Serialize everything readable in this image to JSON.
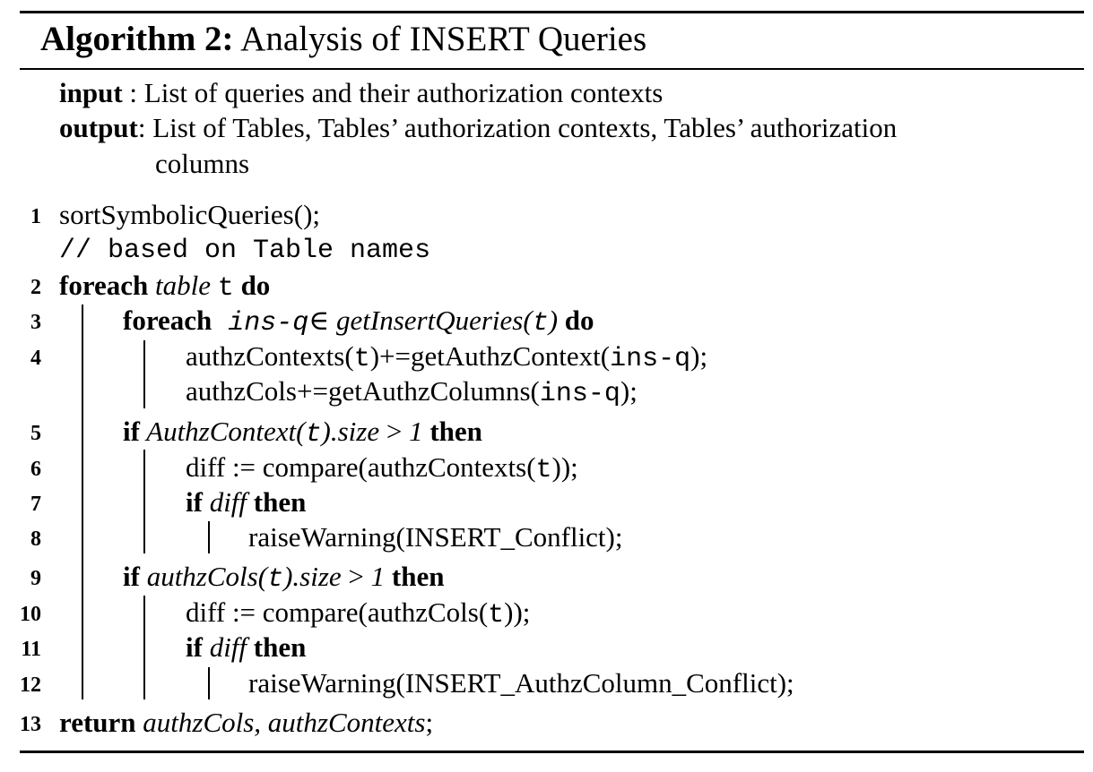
{
  "algorithm": {
    "label": "Algorithm 2:",
    "title": "Analysis of INSERT Queries",
    "io": {
      "input_kw": "input",
      "input_text": " : List of queries and their authorization contexts",
      "output_kw": "output",
      "output_text_1": ": List of Tables, Tables’ authorization contexts, Tables’ authorization",
      "output_text_2": "columns"
    },
    "lines": {
      "l1": {
        "num": "1",
        "text": "sortSymbolicQueries();"
      },
      "comment": {
        "text": "// based on Table names"
      },
      "l2": {
        "num": "2",
        "kw1": "foreach",
        "it": " table ",
        "tt": "t",
        "kw2": " do"
      },
      "l3": {
        "num": "3",
        "kw1": "foreach",
        "tt": " ins-q",
        "sym": "∈ ",
        "it": "getInsertQueries(",
        "tt2": "t",
        "it2": ")",
        "kw2": " do"
      },
      "l4a": {
        "num": "4",
        "pre": "authzContexts(",
        "tt": "t",
        "mid": ")+=getAuthzContext(",
        "tt2": "ins-q",
        "post": ");"
      },
      "l4b": {
        "pre": "authzCols+=getAuthzColumns(",
        "tt": "ins-q",
        "post": ");"
      },
      "l5": {
        "num": "5",
        "kw1": "if",
        "it": " AuthzContext(",
        "tt": "t",
        "it2": ").size ",
        "op": "> ",
        "it3": "1",
        "kw2": " then"
      },
      "l6": {
        "num": "6",
        "pre": "diff := compare(authzContexts(",
        "tt": "t",
        "post": "));"
      },
      "l7": {
        "num": "7",
        "kw1": "if",
        "it": " diff ",
        "kw2": "then"
      },
      "l8": {
        "num": "8",
        "text": "raiseWarning(INSERT_Conflict);"
      },
      "l9": {
        "num": "9",
        "kw1": "if",
        "it": " authzCols(",
        "tt": "t",
        "it2": ").size ",
        "op": "> ",
        "it3": "1",
        "kw2": " then"
      },
      "l10": {
        "num": "10",
        "pre": "diff := compare(authzCols(",
        "tt": "t",
        "post": "));"
      },
      "l11": {
        "num": "11",
        "kw1": "if",
        "it": " diff ",
        "kw2": "then"
      },
      "l12": {
        "num": "12",
        "text": "raiseWarning(INSERT_AuthzColumn_Conflict);"
      },
      "l13": {
        "num": "13",
        "kw1": "return",
        "it": " authzCols, authzContexts",
        "post": ";"
      }
    }
  }
}
